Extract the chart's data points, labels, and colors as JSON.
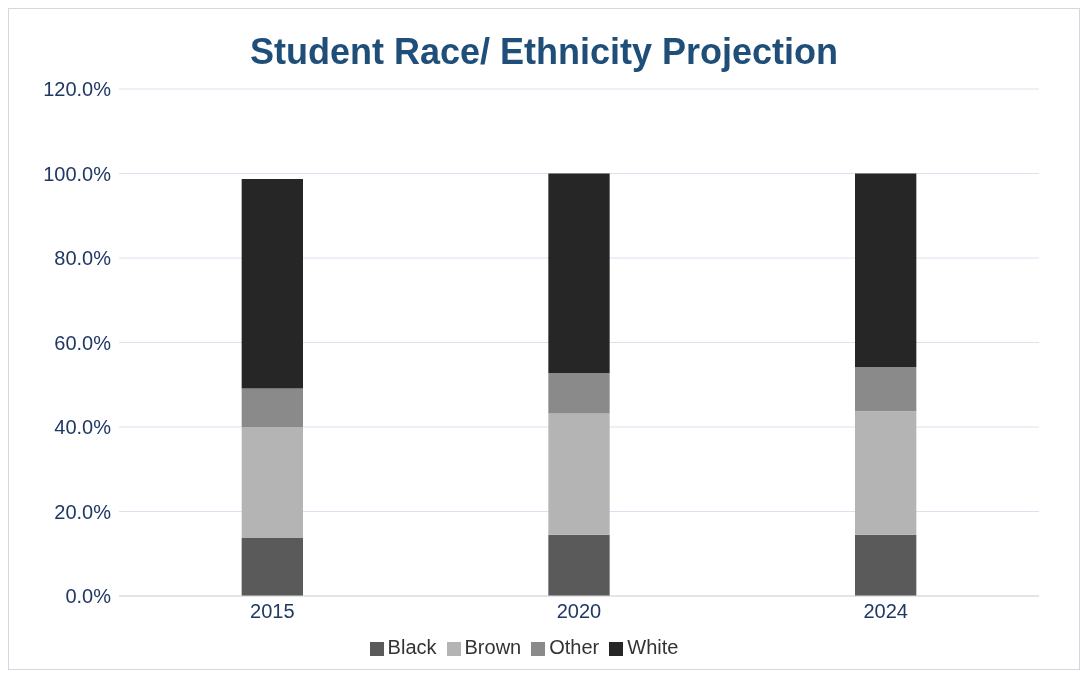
{
  "chart_data": {
    "type": "bar",
    "title": "Student Race/ Ethnicity Projection",
    "categories": [
      "2015",
      "2020",
      "2024"
    ],
    "stacked": true,
    "series": [
      {
        "name": "Black",
        "color": "#5a5a5a",
        "values": [
          13.7,
          14.5,
          14.5
        ]
      },
      {
        "name": "Brown",
        "color": "#b4b4b4",
        "values": [
          26.3,
          28.7,
          29.2
        ]
      },
      {
        "name": "Other",
        "color": "#8a8a8a",
        "values": [
          9.1,
          9.6,
          10.5
        ]
      },
      {
        "name": "White",
        "color": "#262626",
        "values": [
          49.6,
          47.2,
          45.8
        ]
      }
    ],
    "ylim": [
      0,
      120
    ],
    "yticks": [
      {
        "value": 0,
        "label": "0.0%"
      },
      {
        "value": 20,
        "label": "20.0%"
      },
      {
        "value": 40,
        "label": "40.0%"
      },
      {
        "value": 60,
        "label": "60.0%"
      },
      {
        "value": 80,
        "label": "80.0%"
      },
      {
        "value": 100,
        "label": "100.0%"
      },
      {
        "value": 120,
        "label": "120.0%"
      }
    ],
    "grid": "y",
    "legend": "bottom"
  }
}
